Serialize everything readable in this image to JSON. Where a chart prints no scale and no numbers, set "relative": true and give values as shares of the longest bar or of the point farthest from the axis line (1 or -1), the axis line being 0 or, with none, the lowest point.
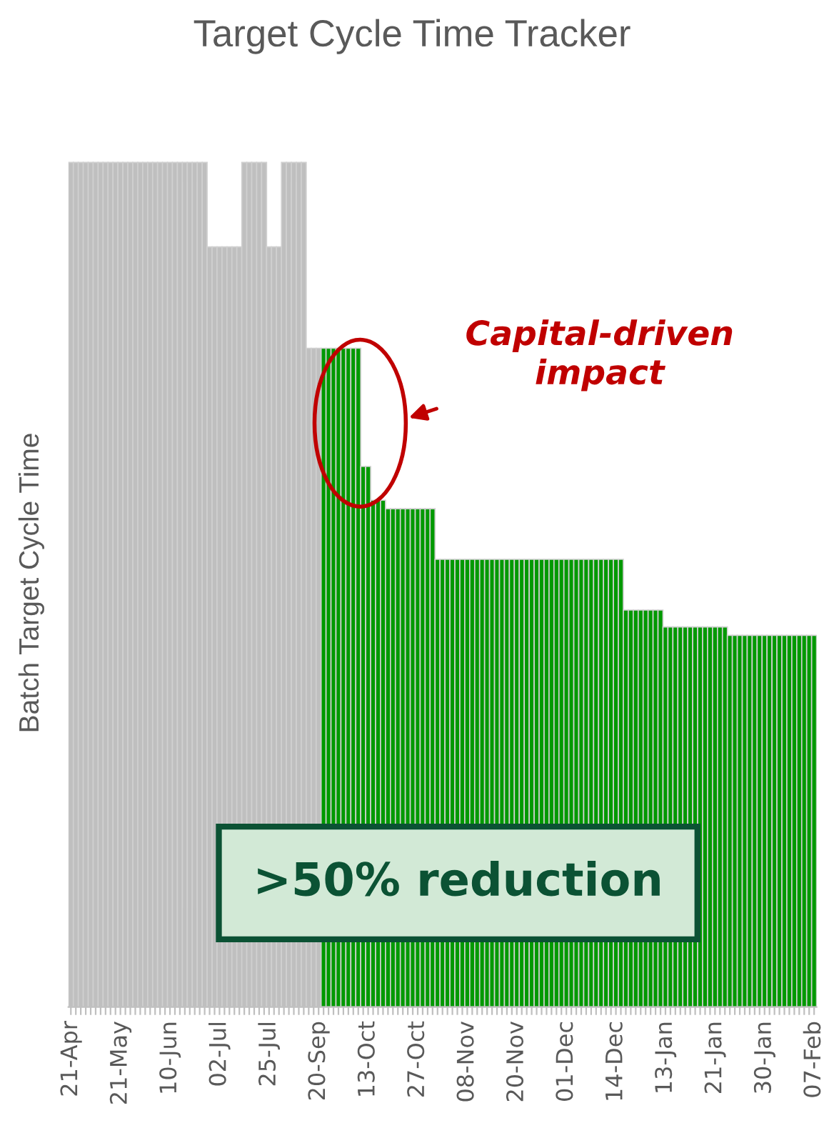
{
  "chart_data": {
    "type": "bar",
    "title": "Target Cycle Time Tracker",
    "ylabel": "Batch Target Cycle Time",
    "relative": true,
    "annotations": [
      "Capital-driven\nimpact",
      ">50% reduction"
    ],
    "categories": [
      "21-Apr",
      null,
      null,
      null,
      null,
      null,
      null,
      null,
      null,
      null,
      "21-May",
      null,
      null,
      null,
      null,
      null,
      null,
      null,
      null,
      null,
      "10-Jun",
      null,
      null,
      null,
      null,
      null,
      null,
      null,
      null,
      null,
      "02-Jul",
      null,
      null,
      null,
      null,
      null,
      null,
      null,
      null,
      null,
      "25-Jul",
      null,
      null,
      null,
      null,
      null,
      null,
      null,
      null,
      null,
      "20-Sep",
      null,
      null,
      null,
      null,
      null,
      null,
      null,
      null,
      null,
      "13-Oct",
      null,
      null,
      null,
      null,
      null,
      null,
      null,
      null,
      null,
      "27-Oct",
      null,
      null,
      null,
      null,
      null,
      null,
      null,
      null,
      null,
      "08-Nov",
      null,
      null,
      null,
      null,
      null,
      null,
      null,
      null,
      null,
      "20-Nov",
      null,
      null,
      null,
      null,
      null,
      null,
      null,
      null,
      null,
      "01-Dec",
      null,
      null,
      null,
      null,
      null,
      null,
      null,
      null,
      null,
      "14-Dec",
      null,
      null,
      null,
      null,
      null,
      null,
      null,
      null,
      null,
      "13-Jan",
      null,
      null,
      null,
      null,
      null,
      null,
      null,
      null,
      null,
      "21-Jan",
      null,
      null,
      null,
      null,
      null,
      null,
      null,
      null,
      null,
      "30-Jan",
      null,
      null,
      null,
      null,
      null,
      null,
      null,
      null,
      null,
      "07-Feb"
    ],
    "values": [
      1,
      1,
      1,
      1,
      1,
      1,
      1,
      1,
      1,
      1,
      1,
      1,
      1,
      1,
      1,
      1,
      1,
      1,
      1,
      1,
      1,
      1,
      1,
      1,
      1,
      1,
      1,
      1,
      0.9,
      0.9,
      0.9,
      0.9,
      0.9,
      0.9,
      0.9,
      1,
      1,
      1,
      1,
      1,
      0.9,
      0.9,
      0.9,
      1,
      1,
      1,
      1,
      1,
      0.78,
      0.78,
      0.78,
      0.78,
      0.78,
      0.78,
      0.78,
      0.78,
      0.78,
      0.78,
      0.78,
      0.64,
      0.64,
      0.6,
      0.6,
      0.6,
      0.59,
      0.59,
      0.59,
      0.59,
      0.59,
      0.59,
      0.59,
      0.59,
      0.59,
      0.59,
      0.53,
      0.53,
      0.53,
      0.53,
      0.53,
      0.53,
      0.53,
      0.53,
      0.53,
      0.53,
      0.53,
      0.53,
      0.53,
      0.53,
      0.53,
      0.53,
      0.53,
      0.53,
      0.53,
      0.53,
      0.53,
      0.53,
      0.53,
      0.53,
      0.53,
      0.53,
      0.53,
      0.53,
      0.53,
      0.53,
      0.53,
      0.53,
      0.53,
      0.53,
      0.53,
      0.53,
      0.53,
      0.53,
      0.47,
      0.47,
      0.47,
      0.47,
      0.47,
      0.47,
      0.47,
      0.47,
      0.45,
      0.45,
      0.45,
      0.45,
      0.45,
      0.45,
      0.45,
      0.45,
      0.45,
      0.45,
      0.45,
      0.45,
      0.45,
      0.44,
      0.44,
      0.44,
      0.44,
      0.44,
      0.44,
      0.44,
      0.44,
      0.44,
      0.44,
      0.44,
      0.44,
      0.44,
      0.44,
      0.44,
      0.44,
      0.44,
      0.44
    ],
    "colors": [
      "#bfbfbf",
      "#bfbfbf",
      "#bfbfbf",
      "#bfbfbf",
      "#bfbfbf",
      "#bfbfbf",
      "#bfbfbf",
      "#bfbfbf",
      "#bfbfbf",
      "#bfbfbf",
      "#bfbfbf",
      "#bfbfbf",
      "#bfbfbf",
      "#bfbfbf",
      "#bfbfbf",
      "#bfbfbf",
      "#bfbfbf",
      "#bfbfbf",
      "#bfbfbf",
      "#bfbfbf",
      "#bfbfbf",
      "#bfbfbf",
      "#bfbfbf",
      "#bfbfbf",
      "#bfbfbf",
      "#bfbfbf",
      "#bfbfbf",
      "#bfbfbf",
      "#bfbfbf",
      "#bfbfbf",
      "#bfbfbf",
      "#bfbfbf",
      "#bfbfbf",
      "#bfbfbf",
      "#bfbfbf",
      "#bfbfbf",
      "#bfbfbf",
      "#bfbfbf",
      "#bfbfbf",
      "#bfbfbf",
      "#bfbfbf",
      "#bfbfbf",
      "#bfbfbf",
      "#bfbfbf",
      "#bfbfbf",
      "#bfbfbf",
      "#bfbfbf",
      "#bfbfbf",
      "#bfbfbf",
      "#bfbfbf",
      "#bfbfbf",
      "#009900",
      "#009900",
      "#009900",
      "#009900",
      "#009900",
      "#009900",
      "#009900",
      "#009900",
      "#009900",
      "#009900",
      "#009900",
      "#009900",
      "#009900",
      "#009900",
      "#009900",
      "#009900",
      "#009900",
      "#009900",
      "#009900",
      "#009900",
      "#009900",
      "#009900",
      "#009900",
      "#009900",
      "#009900",
      "#009900",
      "#009900",
      "#009900",
      "#009900",
      "#009900",
      "#009900",
      "#009900",
      "#009900",
      "#009900",
      "#009900",
      "#009900",
      "#009900",
      "#009900",
      "#009900",
      "#009900",
      "#009900",
      "#009900",
      "#009900",
      "#009900",
      "#009900",
      "#009900",
      "#009900",
      "#009900",
      "#009900",
      "#009900",
      "#009900",
      "#009900",
      "#009900",
      "#009900",
      "#009900",
      "#009900",
      "#009900",
      "#009900",
      "#009900",
      "#009900",
      "#009900",
      "#009900",
      "#009900",
      "#009900",
      "#009900",
      "#009900",
      "#009900",
      "#009900",
      "#009900",
      "#009900",
      "#009900",
      "#009900",
      "#009900",
      "#009900",
      "#009900",
      "#009900",
      "#009900",
      "#009900",
      "#009900",
      "#009900",
      "#009900",
      "#009900",
      "#009900",
      "#009900",
      "#009900",
      "#009900",
      "#009900",
      "#009900",
      "#009900",
      "#009900",
      "#009900",
      "#009900",
      "#009900",
      "#009900",
      "#009900",
      "#009900",
      "#009900",
      "#009900",
      "#009900",
      "#009900"
    ]
  }
}
